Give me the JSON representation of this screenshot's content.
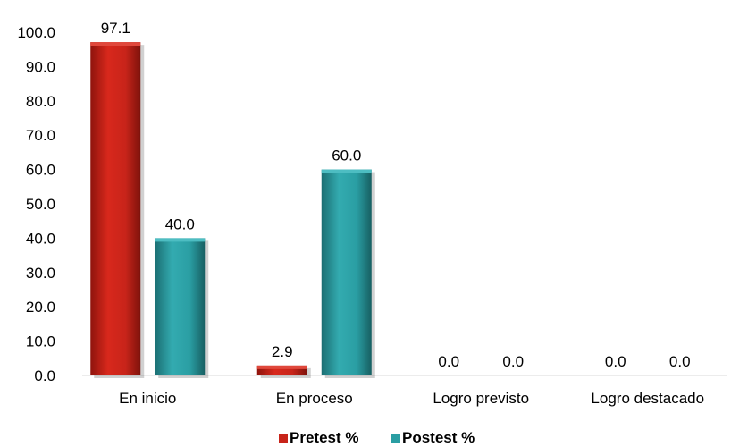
{
  "chart_data": {
    "type": "bar",
    "categories": [
      "En inicio",
      "En proceso",
      "Logro previsto",
      "Logro destacado"
    ],
    "series": [
      {
        "name": "Pretest %",
        "values": [
          97.1,
          2.9,
          0.0,
          0.0
        ],
        "color": "#c8241a"
      },
      {
        "name": "Postest %",
        "values": [
          40.0,
          60.0,
          0.0,
          0.0
        ],
        "color": "#2a9ea3"
      }
    ],
    "value_labels": [
      [
        "97.1",
        "2.9",
        "0.0",
        "0.0"
      ],
      [
        "40.0",
        "60.0",
        "0.0",
        "0.0"
      ]
    ],
    "y_ticks": [
      "0.0",
      "10.0",
      "20.0",
      "30.0",
      "40.0",
      "50.0",
      "60.0",
      "70.0",
      "80.0",
      "90.0",
      "100.0"
    ],
    "ylim": [
      0,
      100
    ],
    "grid": false,
    "legend_position": "bottom"
  }
}
